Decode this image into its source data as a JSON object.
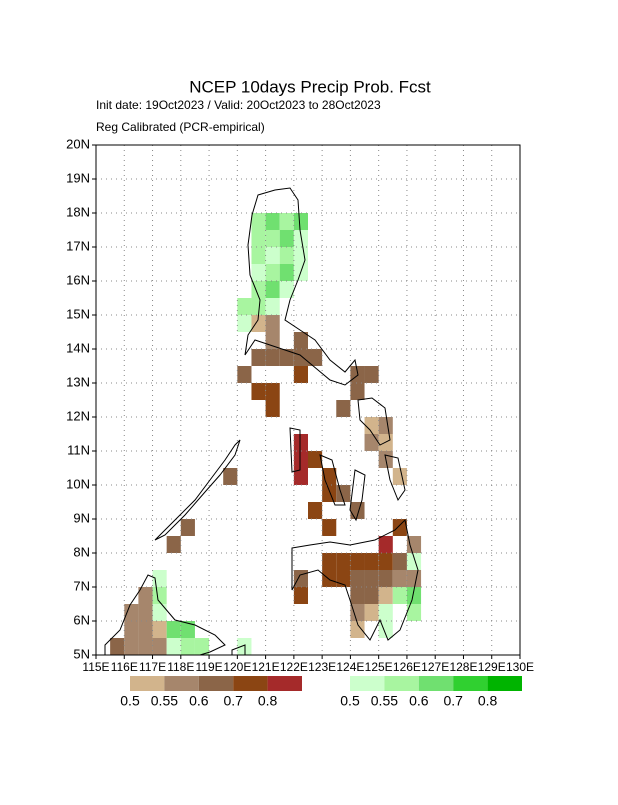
{
  "chart_data": {
    "type": "grid-map",
    "title": "NCEP 10days Precip Prob. Fcst",
    "subtitle": "Init date: 19Oct2023 / Valid: 20Oct2023 to 28Oct2023",
    "subtitle2": "Reg Calibrated (PCR-empirical)",
    "xlim": [
      115,
      130
    ],
    "ylim": [
      5,
      20
    ],
    "grid": true,
    "cell_size": 0.5,
    "xticks": [
      {
        "value": 115,
        "label": "115E"
      },
      {
        "value": 116,
        "label": "116E"
      },
      {
        "value": 117,
        "label": "117E"
      },
      {
        "value": 118,
        "label": "118E"
      },
      {
        "value": 119,
        "label": "119E"
      },
      {
        "value": 120,
        "label": "120E"
      },
      {
        "value": 121,
        "label": "121E"
      },
      {
        "value": 122,
        "label": "122E"
      },
      {
        "value": 123,
        "label": "123E"
      },
      {
        "value": 124,
        "label": "124E"
      },
      {
        "value": 125,
        "label": "125E"
      },
      {
        "value": 126,
        "label": "126E"
      },
      {
        "value": 127,
        "label": "127E"
      },
      {
        "value": 128,
        "label": "128E"
      },
      {
        "value": 129,
        "label": "129E"
      },
      {
        "value": 130,
        "label": "130E"
      }
    ],
    "yticks": [
      {
        "value": 5,
        "label": "5N"
      },
      {
        "value": 6,
        "label": "6N"
      },
      {
        "value": 7,
        "label": "7N"
      },
      {
        "value": 8,
        "label": "8N"
      },
      {
        "value": 9,
        "label": "9N"
      },
      {
        "value": 10,
        "label": "10N"
      },
      {
        "value": 11,
        "label": "11N"
      },
      {
        "value": 12,
        "label": "12N"
      },
      {
        "value": 13,
        "label": "13N"
      },
      {
        "value": 14,
        "label": "14N"
      },
      {
        "value": 15,
        "label": "15N"
      },
      {
        "value": 16,
        "label": "16N"
      },
      {
        "value": 17,
        "label": "17N"
      },
      {
        "value": 18,
        "label": "18N"
      },
      {
        "value": 19,
        "label": "19N"
      },
      {
        "value": 20,
        "label": "20N"
      }
    ],
    "colorbars": [
      {
        "labels": [
          0.5,
          0.55,
          0.6,
          0.7,
          0.8
        ],
        "colors": [
          "#d2b48c",
          "#a6866c",
          "#8b6548",
          "#8b4513",
          "#a52a2a"
        ]
      },
      {
        "labels": [
          0.5,
          0.55,
          0.6,
          0.7,
          0.8
        ],
        "colors": [
          "#ccffcc",
          "#a8f5a0",
          "#70e070",
          "#30d030",
          "#00b400"
        ]
      }
    ],
    "cells": [
      [
        120.5,
        17.5,
        6
      ],
      [
        121,
        17.5,
        7
      ],
      [
        121.5,
        17.5,
        6
      ],
      [
        122,
        17.5,
        7
      ],
      [
        120.5,
        17,
        6
      ],
      [
        121,
        17,
        6
      ],
      [
        121.5,
        17,
        7
      ],
      [
        122,
        17,
        5
      ],
      [
        120.5,
        16.5,
        6
      ],
      [
        121,
        16.5,
        5
      ],
      [
        121.5,
        16.5,
        6
      ],
      [
        122,
        16.5,
        5
      ],
      [
        120.5,
        16,
        5
      ],
      [
        121,
        16,
        6
      ],
      [
        121.5,
        16,
        7
      ],
      [
        122,
        16,
        5
      ],
      [
        120.5,
        15.5,
        6
      ],
      [
        121,
        15.5,
        7
      ],
      [
        121.5,
        15.5,
        5
      ],
      [
        120,
        15,
        6
      ],
      [
        120.5,
        15,
        6
      ],
      [
        121,
        15,
        5
      ],
      [
        120,
        14.5,
        5
      ],
      [
        120.5,
        14.5,
        0
      ],
      [
        121,
        14.5,
        1
      ],
      [
        121,
        14,
        1
      ],
      [
        122,
        14,
        2
      ],
      [
        120.5,
        13.5,
        2
      ],
      [
        121,
        13.5,
        2
      ],
      [
        121.5,
        13.5,
        2
      ],
      [
        122,
        13.5,
        2
      ],
      [
        122.5,
        13.5,
        2
      ],
      [
        120,
        13,
        2
      ],
      [
        122,
        13,
        3
      ],
      [
        120.5,
        12.5,
        3
      ],
      [
        121,
        12.5,
        3
      ],
      [
        121,
        12,
        3
      ],
      [
        124,
        13,
        2
      ],
      [
        124.5,
        13,
        2
      ],
      [
        124,
        12.5,
        2
      ],
      [
        123.5,
        12,
        2
      ],
      [
        122,
        11,
        4
      ],
      [
        122,
        10.5,
        4
      ],
      [
        122,
        10,
        4
      ],
      [
        122.5,
        10.5,
        3
      ],
      [
        123,
        10,
        3
      ],
      [
        123,
        9.5,
        3
      ],
      [
        123.5,
        9.5,
        2
      ],
      [
        122.5,
        9,
        3
      ],
      [
        123,
        8.5,
        3
      ],
      [
        124,
        9,
        2
      ],
      [
        124.5,
        11.5,
        0
      ],
      [
        125,
        11.5,
        1
      ],
      [
        124.5,
        11,
        1
      ],
      [
        125,
        11,
        0
      ],
      [
        125.5,
        10,
        0
      ],
      [
        125,
        10.5,
        1
      ],
      [
        125.5,
        8.5,
        3
      ],
      [
        125,
        8,
        4
      ],
      [
        123,
        7.5,
        3
      ],
      [
        123.5,
        7.5,
        3
      ],
      [
        124,
        7.5,
        3
      ],
      [
        124.5,
        7.5,
        3
      ],
      [
        125,
        7.5,
        3
      ],
      [
        125.5,
        7.5,
        2
      ],
      [
        126,
        7.5,
        5
      ],
      [
        126,
        8,
        1
      ],
      [
        123,
        7,
        3
      ],
      [
        123.5,
        7,
        3
      ],
      [
        124,
        7,
        2
      ],
      [
        124.5,
        7,
        2
      ],
      [
        125,
        7,
        2
      ],
      [
        125.5,
        7,
        1
      ],
      [
        126,
        7,
        1
      ],
      [
        122,
        7,
        2
      ],
      [
        122,
        6.5,
        3
      ],
      [
        124,
        6.5,
        2
      ],
      [
        124.5,
        6.5,
        2
      ],
      [
        125,
        6.5,
        0
      ],
      [
        125.5,
        6.5,
        6
      ],
      [
        126,
        6.5,
        7
      ],
      [
        126,
        6,
        6
      ],
      [
        124,
        6,
        1
      ],
      [
        124.5,
        6,
        0
      ],
      [
        125,
        6,
        5
      ],
      [
        125,
        5.5,
        5
      ],
      [
        124,
        5.5,
        0
      ],
      [
        118,
        8.5,
        2
      ],
      [
        117.5,
        8,
        2
      ],
      [
        119.5,
        10,
        2
      ],
      [
        117,
        7,
        5
      ],
      [
        117,
        6.5,
        6
      ],
      [
        116.5,
        6.5,
        1
      ],
      [
        116,
        6,
        1
      ],
      [
        116.5,
        6,
        1
      ],
      [
        117,
        6,
        5
      ],
      [
        116,
        5.5,
        1
      ],
      [
        116.5,
        5.5,
        1
      ],
      [
        117,
        5.5,
        0
      ],
      [
        117.5,
        5.5,
        7
      ],
      [
        118,
        5.5,
        7
      ],
      [
        115.5,
        5,
        2
      ],
      [
        116,
        5,
        1
      ],
      [
        116.5,
        5,
        1
      ],
      [
        117,
        5,
        1
      ],
      [
        117.5,
        5,
        5
      ],
      [
        118,
        5,
        6
      ],
      [
        118.5,
        5,
        6
      ],
      [
        120,
        5,
        5
      ]
    ]
  }
}
